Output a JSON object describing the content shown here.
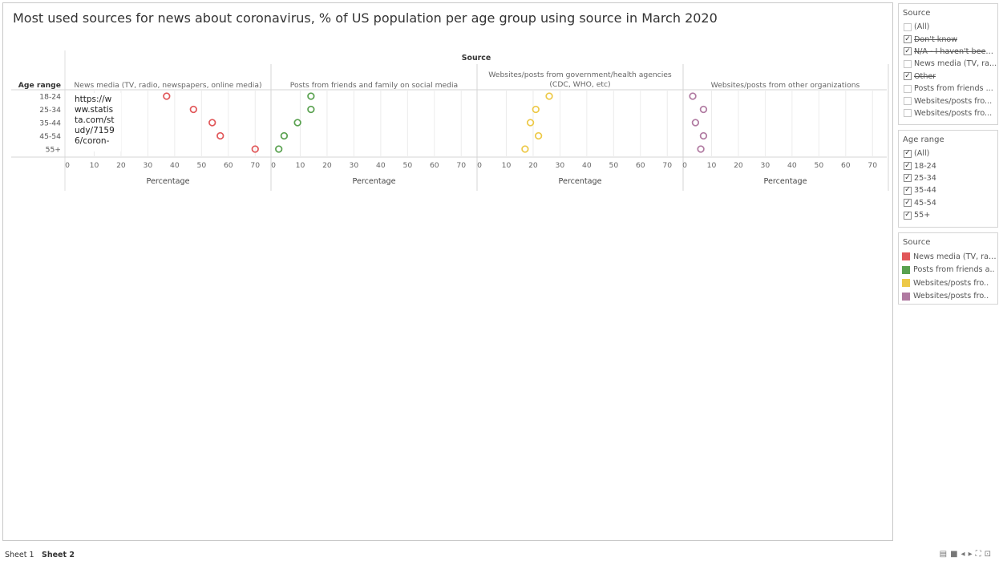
{
  "title": "Most used sources for news about coronavirus, % of US population per age group using source in March 2020",
  "url_text": "https://w\nww.statis\nta.com/st\nudy/7159\n6/coron-",
  "chart_data": {
    "type": "scatter",
    "column_header": "Source",
    "row_header": "Age range",
    "age_groups": [
      "18-24",
      "25-34",
      "35-44",
      "45-54",
      "55+"
    ],
    "xlabel": "Percentage",
    "xlim": [
      0,
      75
    ],
    "xticks": [
      "0",
      "10",
      "20",
      "30",
      "40",
      "50",
      "60",
      "70"
    ],
    "panels": [
      {
        "name": "News media (TV, radio, newspapers, online media)",
        "name_lines": [
          "News media (TV, radio, newspapers, online media)"
        ],
        "color": "#e15759",
        "values": [
          37,
          47,
          54,
          57,
          70
        ]
      },
      {
        "name": "Posts from friends and family on social media",
        "name_lines": [
          "Posts from friends and family on social media"
        ],
        "color": "#59a14f",
        "values": [
          14,
          14,
          9,
          4,
          2
        ]
      },
      {
        "name": "Websites/posts from government/health agencies (CDC, WHO, etc)",
        "name_lines": [
          "Websites/posts from government/health agencies",
          "(CDC, WHO, etc)"
        ],
        "color": "#edc948",
        "values": [
          26,
          21,
          19,
          22,
          17
        ]
      },
      {
        "name": "Websites/posts from other organizations",
        "name_lines": [
          "Websites/posts from other organizations"
        ],
        "color": "#b07aa1",
        "values": [
          3,
          7,
          4,
          7,
          6
        ]
      }
    ],
    "grid": true
  },
  "source_filter": {
    "title": "Source",
    "items": [
      {
        "label": "(All)",
        "checked": false,
        "strike": false
      },
      {
        "label": "Don't know",
        "checked": true,
        "strike": true
      },
      {
        "label": "N/A - I haven't been ...",
        "checked": true,
        "strike": true
      },
      {
        "label": "News media (TV, ra...",
        "checked": false,
        "strike": false
      },
      {
        "label": "Other",
        "checked": true,
        "strike": true
      },
      {
        "label": "Posts from friends ...",
        "checked": false,
        "strike": false
      },
      {
        "label": "Websites/posts fro...",
        "checked": false,
        "strike": false
      },
      {
        "label": "Websites/posts fro...",
        "checked": false,
        "strike": false
      }
    ]
  },
  "age_filter": {
    "title": "Age range",
    "items": [
      {
        "label": "(All)",
        "checked": true
      },
      {
        "label": "18-24",
        "checked": true
      },
      {
        "label": "25-34",
        "checked": true
      },
      {
        "label": "35-44",
        "checked": true
      },
      {
        "label": "45-54",
        "checked": true
      },
      {
        "label": "55+",
        "checked": true
      }
    ]
  },
  "color_legend": {
    "title": "Source",
    "items": [
      {
        "label": "News media (TV, rad..",
        "color": "#e15759"
      },
      {
        "label": "Posts from friends a..",
        "color": "#59a14f"
      },
      {
        "label": "Websites/posts fro..",
        "color": "#edc948"
      },
      {
        "label": "Websites/posts fro..",
        "color": "#b07aa1"
      }
    ]
  },
  "tabs": [
    {
      "label": "Sheet 1",
      "active": false
    },
    {
      "label": "Sheet 2",
      "active": true
    }
  ],
  "status_icons": [
    "grid-icon",
    "presentation-icon",
    "prev-icon",
    "next-icon",
    "fullscreen-icon",
    "present-icon"
  ]
}
